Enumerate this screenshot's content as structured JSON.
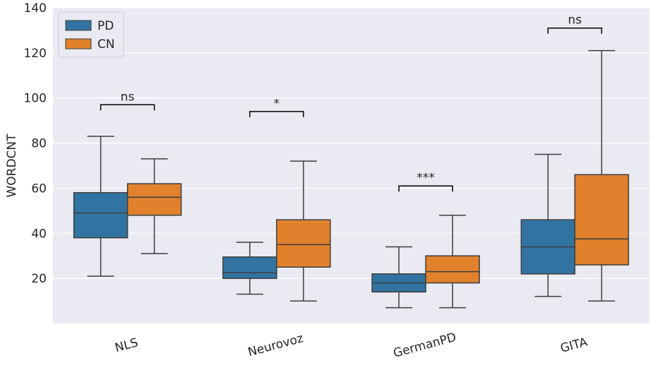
{
  "chart_data": {
    "type": "box",
    "title": "",
    "xlabel": "",
    "ylabel": "WORDCNT",
    "ylim": [
      0,
      140
    ],
    "yticks": [
      20,
      40,
      60,
      80,
      100,
      120,
      140
    ],
    "categories": [
      "NLS",
      "Neurovoz",
      "GermanPD",
      "GITA"
    ],
    "series": [
      {
        "name": "PD",
        "color": "#3274a1",
        "boxes": [
          {
            "whisker_low": 21,
            "q1": 38,
            "median": 49,
            "q3": 58,
            "whisker_high": 83
          },
          {
            "whisker_low": 13,
            "q1": 20,
            "median": 22.5,
            "q3": 29.5,
            "whisker_high": 36
          },
          {
            "whisker_low": 7,
            "q1": 14,
            "median": 18,
            "q3": 22,
            "whisker_high": 34
          },
          {
            "whisker_low": 12,
            "q1": 22,
            "median": 34,
            "q3": 46,
            "whisker_high": 75
          }
        ]
      },
      {
        "name": "CN",
        "color": "#e1812c",
        "boxes": [
          {
            "whisker_low": 31,
            "q1": 48,
            "median": 56,
            "q3": 62,
            "whisker_high": 73
          },
          {
            "whisker_low": 10,
            "q1": 25,
            "median": 35,
            "q3": 46,
            "whisker_high": 72
          },
          {
            "whisker_low": 7,
            "q1": 18,
            "median": 23,
            "q3": 30,
            "whisker_high": 48
          },
          {
            "whisker_low": 10,
            "q1": 26,
            "median": 37.5,
            "q3": 66,
            "whisker_high": 121
          }
        ]
      }
    ],
    "annotations": [
      {
        "category": "NLS",
        "label": "ns",
        "bracket_y": 97,
        "bracket_drop": 2.5
      },
      {
        "category": "Neurovoz",
        "label": "*",
        "bracket_y": 94,
        "bracket_drop": 2.5
      },
      {
        "category": "GermanPD",
        "label": "***",
        "bracket_y": 61,
        "bracket_drop": 2.5
      },
      {
        "category": "GITA",
        "label": "ns",
        "bracket_y": 131,
        "bracket_drop": 2.5
      }
    ],
    "legend": {
      "position": "top-left",
      "entries": [
        "PD",
        "CN"
      ]
    },
    "grid": {
      "y": true,
      "x": false
    },
    "background": "#eaeaf2",
    "gridline_color": "#ffffff"
  }
}
